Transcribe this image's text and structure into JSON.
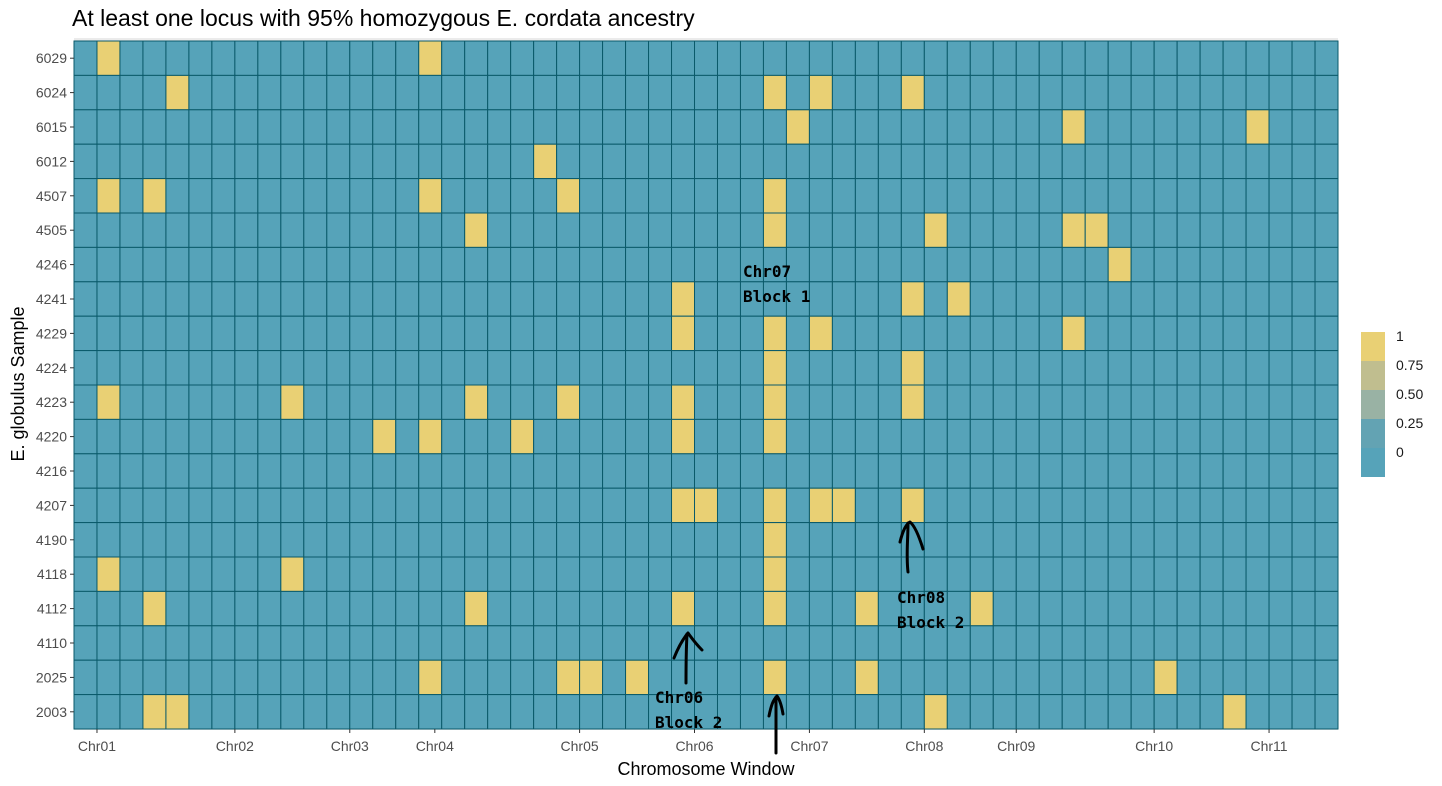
{
  "chart_data": {
    "type": "heatmap",
    "title": "At least one locus with 95% homozygous E. cordata ancestry",
    "xlabel": "Chromosome Window",
    "ylabel": "E. globulus Sample",
    "n_windows": 55,
    "samples": [
      "6029",
      "6024",
      "6015",
      "6012",
      "4507",
      "4505",
      "4246",
      "4241",
      "4229",
      "4224",
      "4223",
      "4220",
      "4216",
      "4207",
      "4190",
      "4118",
      "4112",
      "4110",
      "2025",
      "2003"
    ],
    "x_ticks": [
      {
        "label": "Chr01",
        "window": 1.5
      },
      {
        "label": "Chr02",
        "window": 7.5
      },
      {
        "label": "Chr03",
        "window": 12.5
      },
      {
        "label": "Chr04",
        "window": 16.2
      },
      {
        "label": "Chr05",
        "window": 22.5
      },
      {
        "label": "Chr06",
        "window": 27.5
      },
      {
        "label": "Chr07",
        "window": 32.5
      },
      {
        "label": "Chr08",
        "window": 37.5
      },
      {
        "label": "Chr09",
        "window": 41.5
      },
      {
        "label": "Chr10",
        "window": 47.5
      },
      {
        "label": "Chr11",
        "window": 52.5
      }
    ],
    "legend": {
      "values": [
        "1",
        "0.75",
        "0.50",
        "0.25",
        "0"
      ],
      "colors": [
        "#e9d074",
        "#c0be8f",
        "#99b2a4",
        "#63a3b3",
        "#56a3b9"
      ],
      "position": "right"
    },
    "highlighted_cells": {
      "6029": [
        2,
        16
      ],
      "6024": [
        5,
        31,
        33,
        37
      ],
      "6015": [
        32,
        44,
        52
      ],
      "6012": [
        21
      ],
      "4507": [
        2,
        4,
        16,
        22,
        31
      ],
      "4505": [
        18,
        31,
        38,
        44,
        45
      ],
      "4246": [
        46
      ],
      "4241": [
        27,
        37,
        39
      ],
      "4229": [
        27,
        31,
        33,
        44
      ],
      "4224": [
        31,
        37
      ],
      "4223": [
        2,
        10,
        18,
        22,
        27,
        31,
        37
      ],
      "4220": [
        14,
        16,
        20,
        27,
        31
      ],
      "4216": [],
      "4207": [
        27,
        28,
        31,
        33,
        34,
        37
      ],
      "4190": [
        31
      ],
      "4118": [
        2,
        10,
        31
      ],
      "4112": [
        4,
        18,
        27,
        31,
        35,
        40
      ],
      "4110": [],
      "2025": [
        16,
        22,
        23,
        25,
        31,
        35,
        48
      ],
      "2003": [
        4,
        5,
        38,
        51
      ]
    },
    "annotations": [
      {
        "line1": "Chr07",
        "line2": "Block 1"
      },
      {
        "line1": "Chr08",
        "line2": "Block 2"
      },
      {
        "line1": "Chr06",
        "line2": "Block 2"
      }
    ],
    "colors": {
      "low": "#56a3b9",
      "high": "#e9d074",
      "grid_line": "#0a5a6a",
      "panel_bg": "#ebebeb"
    }
  }
}
